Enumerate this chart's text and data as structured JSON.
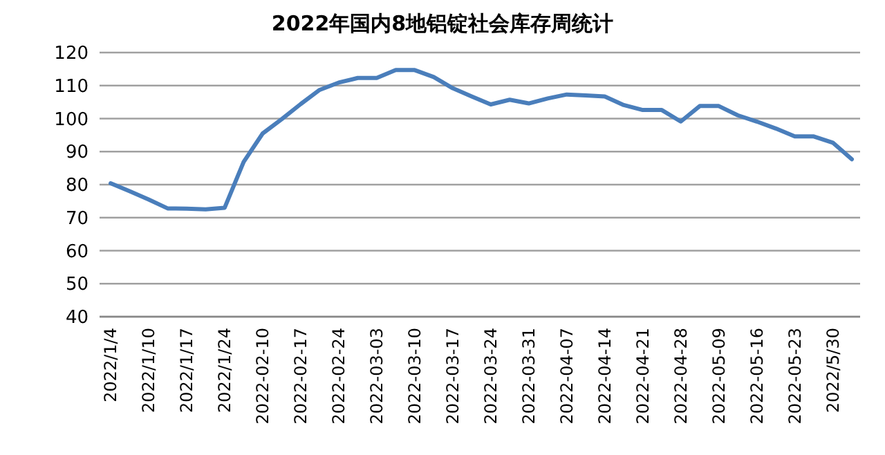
{
  "chart_data": {
    "type": "line",
    "title": "2022年国内8地铝锭社会库存周统计",
    "categories": [
      "2022/1/4",
      null,
      "2022/1/10",
      null,
      "2022/1/17",
      null,
      "2022/1/24",
      null,
      "2022-02-10",
      null,
      "2022-02-17",
      null,
      "2022-02-24",
      null,
      "2022-03-03",
      null,
      "2022-03-10",
      null,
      "2022-03-17",
      null,
      "2022-03-24",
      null,
      "2022-03-31",
      null,
      "2022-04-07",
      null,
      "2022-04-14",
      null,
      "2022-04-21",
      null,
      "2022-04-28",
      null,
      "2022-05-09",
      null,
      "2022-05-16",
      null,
      "2022-05-23",
      null,
      "2022/5/30",
      null
    ],
    "series": [
      {
        "color": "#4a7ebb",
        "values": [
          80.4,
          78,
          75.5,
          72.8,
          72.7,
          72.5,
          73,
          86.9,
          95.5,
          99.8,
          104.4,
          108.7,
          110.9,
          112.3,
          112.3,
          114.7,
          114.7,
          112.6,
          109.2,
          106.7,
          104.3,
          105.7,
          104.6,
          106.1,
          107.3,
          107,
          106.7,
          104.1,
          102.6,
          102.6,
          99.1,
          103.8,
          103.8,
          101,
          99.1,
          97,
          94.6,
          94.6,
          92.7,
          87.7
        ]
      }
    ],
    "ylim": [
      40,
      120
    ],
    "yticks": [
      40,
      50,
      60,
      70,
      80,
      90,
      100,
      110,
      120
    ],
    "grid": "y",
    "marker": "none",
    "line_style": "solid"
  }
}
